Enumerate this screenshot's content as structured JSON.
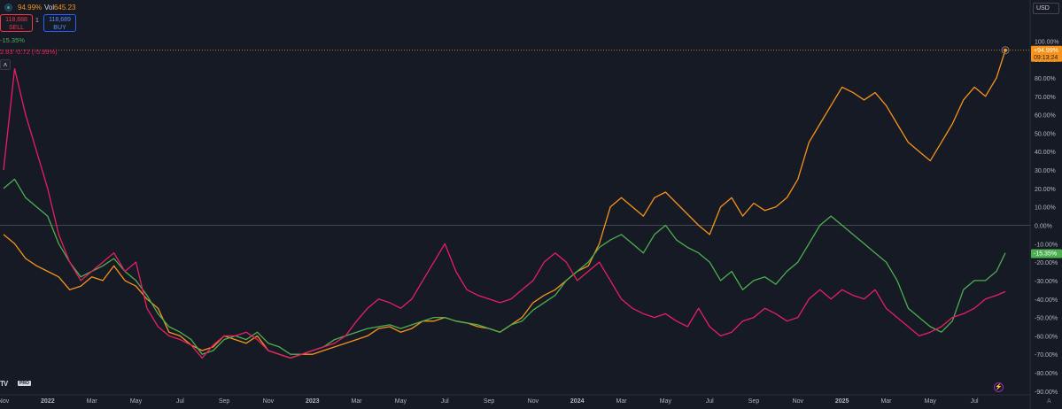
{
  "header": {
    "change": "94.99%",
    "vol_label": "Vol",
    "vol_value": "645.23",
    "sell_price": "118,688",
    "sell_label": "SELL",
    "spread": "1",
    "buy_price": "118,689",
    "buy_label": "BUY",
    "legend_green": "-15.35%",
    "legend_red": "2.83 -0.72 (-5.99%)",
    "collapse_icon": "chevron-up-icon",
    "currency": "USD"
  },
  "footer": {
    "logo_text": "TV",
    "logo_badge": "PRO"
  },
  "chart_data": {
    "type": "line",
    "x_tick_labels": [
      "Nov",
      "2022",
      "Mar",
      "May",
      "Jul",
      "Sep",
      "Nov",
      "2023",
      "Mar",
      "May",
      "Jul",
      "Sep",
      "Nov",
      "2024",
      "Mar",
      "May",
      "Jul",
      "Sep",
      "Nov",
      "2025",
      "Mar",
      "May",
      "Jul"
    ],
    "y_tick_labels": [
      "100.00%",
      "90.00%",
      "80.00%",
      "70.00%",
      "60.00%",
      "50.00%",
      "40.00%",
      "30.00%",
      "20.00%",
      "10.00%",
      "0.00%",
      "-10.00%",
      "-20.00%",
      "-30.00%",
      "-40.00%",
      "-50.00%",
      "-60.00%",
      "-70.00%",
      "-80.00%",
      "-90.00%"
    ],
    "ylim": [
      -92,
      104
    ],
    "xlim": [
      0,
      45.4
    ],
    "grid": false,
    "zero_line": true,
    "current_line_value": 95,
    "price_labels": [
      {
        "value": 94.99,
        "text": "+94.99%",
        "subtext": "09:13:24",
        "color": "#f7931a"
      },
      {
        "value": -15.35,
        "text": "-15.35%",
        "subtext": "",
        "color": "#4caf50"
      }
    ],
    "series": [
      {
        "color": "#f7931a",
        "x": [
          0,
          0.5,
          1,
          1.5,
          2,
          2.5,
          3,
          3.5,
          4,
          4.5,
          5,
          5.5,
          6,
          6.5,
          7,
          7.5,
          8,
          8.5,
          9,
          9.5,
          10,
          10.5,
          11,
          11.5,
          12,
          12.5,
          13,
          13.5,
          14,
          14.5,
          15,
          15.5,
          16,
          16.5,
          17,
          17.5,
          18,
          18.5,
          19,
          19.5,
          20,
          20.5,
          21,
          21.5,
          22,
          22.5,
          23,
          23.5,
          24,
          24.5,
          25,
          25.5,
          26,
          26.5,
          27,
          27.5,
          28,
          28.5,
          29,
          29.5,
          30,
          30.5,
          31,
          31.5,
          32,
          32.5,
          33,
          33.5,
          34,
          34.5,
          35,
          35.5,
          36,
          36.5,
          37,
          37.5,
          38,
          38.5,
          39,
          39.5,
          40,
          40.5,
          41,
          41.5,
          42,
          42.5,
          43,
          43.5,
          44,
          44.5,
          45,
          45.4
        ],
        "y": [
          -5,
          -10,
          -18,
          -22,
          -25,
          -28,
          -35,
          -33,
          -28,
          -30,
          -22,
          -30,
          -33,
          -40,
          -45,
          -58,
          -60,
          -65,
          -68,
          -66,
          -60,
          -62,
          -64,
          -60,
          -68,
          -70,
          -72,
          -70,
          -70,
          -68,
          -66,
          -64,
          -62,
          -60,
          -56,
          -55,
          -58,
          -56,
          -52,
          -52,
          -50,
          -52,
          -53,
          -55,
          -56,
          -58,
          -54,
          -50,
          -42,
          -38,
          -35,
          -30,
          -25,
          -22,
          -10,
          10,
          15,
          10,
          5,
          15,
          18,
          12,
          6,
          0,
          -5,
          10,
          15,
          5,
          12,
          8,
          10,
          15,
          25,
          45,
          55,
          65,
          75,
          72,
          68,
          72,
          65,
          55,
          45,
          40,
          35,
          45,
          55,
          68,
          75,
          70,
          80,
          95
        ]
      },
      {
        "color": "#4caf50",
        "x": [
          0,
          0.5,
          1,
          1.5,
          2,
          2.5,
          3,
          3.5,
          4,
          4.5,
          5,
          5.5,
          6,
          6.5,
          7,
          7.5,
          8,
          8.5,
          9,
          9.5,
          10,
          10.5,
          11,
          11.5,
          12,
          12.5,
          13,
          13.5,
          14,
          14.5,
          15,
          15.5,
          16,
          16.5,
          17,
          17.5,
          18,
          18.5,
          19,
          19.5,
          20,
          20.5,
          21,
          21.5,
          22,
          22.5,
          23,
          23.5,
          24,
          24.5,
          25,
          25.5,
          26,
          26.5,
          27,
          27.5,
          28,
          28.5,
          29,
          29.5,
          30,
          30.5,
          31,
          31.5,
          32,
          32.5,
          33,
          33.5,
          34,
          34.5,
          35,
          35.5,
          36,
          36.5,
          37,
          37.5,
          38,
          38.5,
          39,
          39.5,
          40,
          40.5,
          41,
          41.5,
          42,
          42.5,
          43,
          43.5,
          44,
          44.5,
          45,
          45.4
        ],
        "y": [
          20,
          25,
          15,
          10,
          5,
          -10,
          -20,
          -28,
          -25,
          -22,
          -18,
          -25,
          -30,
          -38,
          -48,
          -55,
          -58,
          -62,
          -70,
          -68,
          -62,
          -60,
          -62,
          -58,
          -64,
          -66,
          -70,
          -70,
          -68,
          -66,
          -62,
          -60,
          -58,
          -56,
          -55,
          -54,
          -56,
          -54,
          -52,
          -50,
          -50,
          -52,
          -53,
          -54,
          -56,
          -58,
          -54,
          -52,
          -46,
          -42,
          -38,
          -30,
          -25,
          -20,
          -12,
          -8,
          -5,
          -10,
          -15,
          -5,
          0,
          -8,
          -12,
          -15,
          -20,
          -30,
          -25,
          -35,
          -30,
          -28,
          -32,
          -25,
          -20,
          -10,
          0,
          5,
          0,
          -5,
          -10,
          -15,
          -20,
          -30,
          -45,
          -50,
          -55,
          -58,
          -52,
          -35,
          -30,
          -30,
          -25,
          -15
        ]
      },
      {
        "color": "#e91e63",
        "x": [
          0,
          0.5,
          1,
          1.5,
          2,
          2.5,
          3,
          3.5,
          4,
          4.5,
          5,
          5.5,
          6,
          6.5,
          7,
          7.5,
          8,
          8.5,
          9,
          9.5,
          10,
          10.5,
          11,
          11.5,
          12,
          12.5,
          13,
          13.5,
          14,
          14.5,
          15,
          15.5,
          16,
          16.5,
          17,
          17.5,
          18,
          18.5,
          19,
          19.5,
          20,
          20.5,
          21,
          21.5,
          22,
          22.5,
          23,
          23.5,
          24,
          24.5,
          25,
          25.5,
          26,
          26.5,
          27,
          27.5,
          28,
          28.5,
          29,
          29.5,
          30,
          30.5,
          31,
          31.5,
          32,
          32.5,
          33,
          33.5,
          34,
          34.5,
          35,
          35.5,
          36,
          36.5,
          37,
          37.5,
          38,
          38.5,
          39,
          39.5,
          40,
          40.5,
          41,
          41.5,
          42,
          42.5,
          43,
          43.5,
          44,
          44.5,
          45,
          45.4
        ],
        "y": [
          30,
          85,
          60,
          40,
          20,
          -5,
          -20,
          -30,
          -25,
          -20,
          -15,
          -25,
          -20,
          -45,
          -55,
          -60,
          -62,
          -65,
          -72,
          -65,
          -60,
          -60,
          -58,
          -62,
          -68,
          -70,
          -72,
          -70,
          -68,
          -66,
          -64,
          -60,
          -52,
          -45,
          -40,
          -42,
          -45,
          -40,
          -30,
          -20,
          -10,
          -25,
          -35,
          -38,
          -40,
          -42,
          -40,
          -35,
          -30,
          -20,
          -15,
          -20,
          -30,
          -25,
          -20,
          -30,
          -40,
          -45,
          -48,
          -50,
          -48,
          -52,
          -55,
          -45,
          -55,
          -60,
          -58,
          -52,
          -50,
          -45,
          -48,
          -52,
          -50,
          -40,
          -35,
          -40,
          -35,
          -38,
          -40,
          -35,
          -45,
          -50,
          -55,
          -60,
          -58,
          -55,
          -50,
          -48,
          -45,
          -40,
          -38,
          -36
        ]
      }
    ]
  }
}
